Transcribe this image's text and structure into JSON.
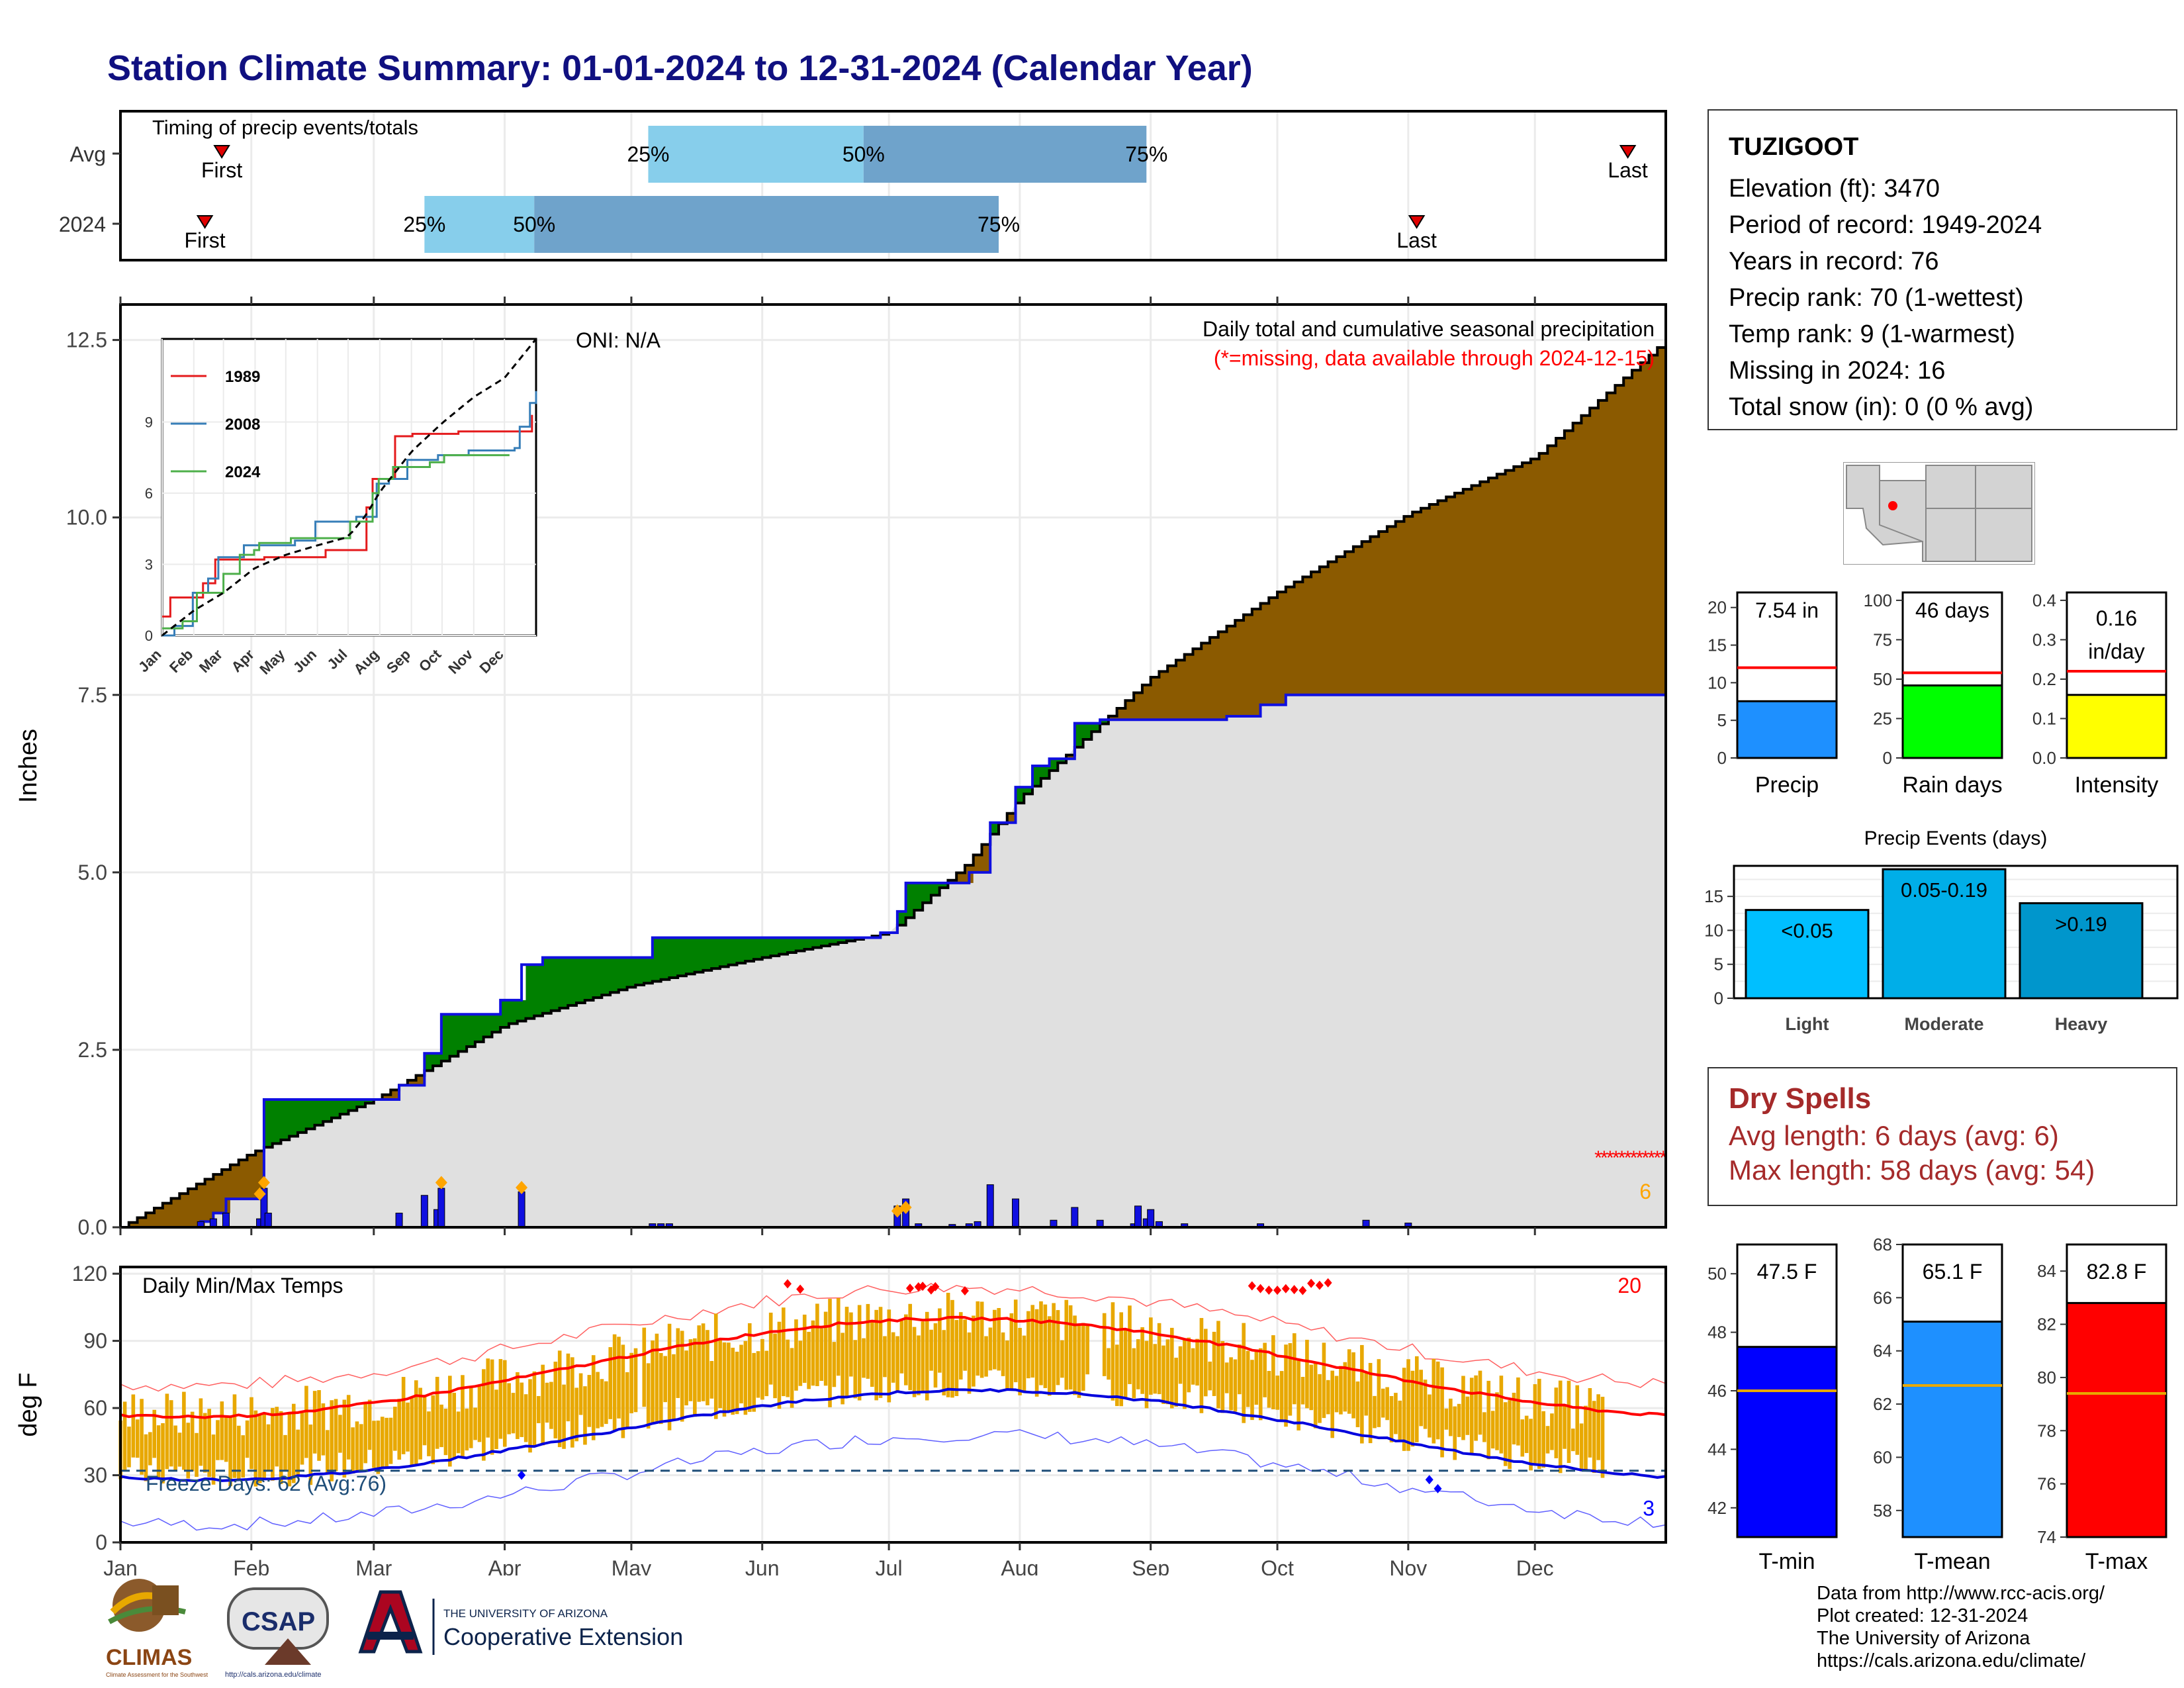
{
  "title": "Station Climate Summary: 01-01-2024 to 12-31-2024 (Calendar Year)",
  "timing_panel": {
    "heading": "Timing of precip events/totals",
    "rows": [
      {
        "label": "Avg",
        "first_label": "First",
        "last_label": "Last",
        "first_date": "2024-01-25",
        "p25_date": "2024-05-05",
        "p50_date": "2024-06-25",
        "p75_date": "2024-08-31",
        "last_date": "2024-12-23"
      },
      {
        "label": "2024",
        "first_label": "First",
        "last_label": "Last",
        "first_date": "2024-01-21",
        "p25_date": "2024-03-13",
        "p50_date": "2024-04-08",
        "p75_date": "2024-07-27",
        "last_date": "2024-11-03"
      }
    ],
    "pct_labels": [
      "25%",
      "50%",
      "75%"
    ],
    "colors": {
      "light": "#87ceeb",
      "dark": "#6fa3cb",
      "marker": "#e00000"
    }
  },
  "precip_panel": {
    "heading": "Daily total and cumulative seasonal precipitation",
    "missing_note": "(*=missing, data available through 2024-12-15)",
    "oni": "ONI: N/A",
    "ylabel": "Inches",
    "yticks": [
      "0.0",
      "2.5",
      "5.0",
      "7.5",
      "10.0",
      "12.5"
    ],
    "missing_count": "6",
    "colors": {
      "avg_fill_above": "#8b5a00",
      "obs_fill_above": "#008000",
      "obs_line": "#1010e0",
      "avg_line": "#000000",
      "daily_bars": "#1010e0",
      "gray": "#e0e0e0",
      "missing": "#ff0000",
      "diamond": "#ffa500"
    }
  },
  "inset": {
    "legend": [
      "1989",
      "2008",
      "2024"
    ],
    "yticks": [
      "0",
      "3",
      "6",
      "9"
    ],
    "xticks": [
      "Jan",
      "Feb",
      "Mar",
      "Apr",
      "May",
      "Jun",
      "Jul",
      "Aug",
      "Sep",
      "Oct",
      "Nov",
      "Dec"
    ],
    "colors": {
      "1989": "#e41a1c",
      "2008": "#377eb8",
      "2024": "#4daf4a"
    }
  },
  "temp_panel": {
    "heading": "Daily Min/Max Temps",
    "ylabel": "deg F",
    "yticks": [
      "0",
      "30",
      "60",
      "90",
      "120"
    ],
    "freeze_label": "Freeze Days: 62 (Avg:76)",
    "hot_count": "20",
    "cold_count": "3",
    "colors": {
      "bars": "#e8a800",
      "max_avg": "#ff0000",
      "min_avg": "#0000dd",
      "freeze": "#1f4e79"
    }
  },
  "x_months": [
    "Jan",
    "Feb",
    "Mar",
    "Apr",
    "May",
    "Jun",
    "Jul",
    "Aug",
    "Sep",
    "Oct",
    "Nov",
    "Dec"
  ],
  "station": {
    "name": "TUZIGOOT",
    "lines": [
      "Elevation (ft): 3470",
      "Period of record: 1949-2024",
      "Years in record: 76",
      "Precip rank: 70 (1-wettest)",
      "Temp rank: 9 (1-warmest)",
      "Missing in 2024: 16",
      "Total snow (in): 0 (0 % avg)"
    ]
  },
  "summary_bars": [
    {
      "label": "Precip",
      "value_text": "7.54 in",
      "value": 7.54,
      "avg": 12,
      "ymax": 22,
      "yticks": [
        "0",
        "5",
        "10",
        "15",
        "20"
      ],
      "tickvals": [
        0,
        5,
        10,
        15,
        20
      ],
      "color": "#1e90ff"
    },
    {
      "label": "Rain days",
      "value_text": "46 days",
      "value": 46,
      "avg": 54,
      "ymax": 105,
      "yticks": [
        "0",
        "25",
        "50",
        "75",
        "100"
      ],
      "tickvals": [
        0,
        25,
        50,
        75,
        100
      ],
      "color": "#00ff00"
    },
    {
      "label": "Intensity",
      "value_text": "0.16 in/day",
      "value": 0.16,
      "avg": 0.22,
      "ymax": 0.42,
      "yticks": [
        "0.0",
        "0.1",
        "0.2",
        "0.3",
        "0.4"
      ],
      "tickvals": [
        0,
        0.1,
        0.2,
        0.3,
        0.4
      ],
      "color": "#ffff00"
    }
  ],
  "precip_events": {
    "title": "Precip Events (days)",
    "yticks": [
      "0",
      "5",
      "10",
      "15"
    ],
    "bars": [
      {
        "label": "Light",
        "range": "<0.05",
        "value": 13,
        "color": "#00bfff"
      },
      {
        "label": "Moderate",
        "range": "0.05-0.19",
        "value": 19,
        "color": "#00aee8"
      },
      {
        "label": "Heavy",
        "range": ">0.19",
        "value": 14,
        "color": "#0096cc"
      }
    ]
  },
  "dry_spells": {
    "title": "Dry Spells",
    "avg_line": "Avg length: 6 days (avg: 6)",
    "max_line": "Max length: 58 days (avg: 54)"
  },
  "temp_bars": [
    {
      "label": "T-min",
      "value_text": "47.5 F",
      "value": 47.5,
      "avg": 46.0,
      "ymin": 41,
      "ymax": 51,
      "yticks": [
        "42",
        "44",
        "46",
        "48",
        "50"
      ],
      "tickvals": [
        42,
        44,
        46,
        48,
        50
      ],
      "color": "#0000ff"
    },
    {
      "label": "T-mean",
      "value_text": "65.1 F",
      "value": 65.1,
      "avg": 62.7,
      "ymin": 57,
      "ymax": 68,
      "yticks": [
        "58",
        "60",
        "62",
        "64",
        "66",
        "68"
      ],
      "tickvals": [
        58,
        60,
        62,
        64,
        66,
        68
      ],
      "color": "#1e90ff"
    },
    {
      "label": "T-max",
      "value_text": "82.8 F",
      "value": 82.8,
      "avg": 79.4,
      "ymin": 74,
      "ymax": 85,
      "yticks": [
        "74",
        "76",
        "78",
        "80",
        "82",
        "84"
      ],
      "tickvals": [
        74,
        76,
        78,
        80,
        82,
        84
      ],
      "color": "#ff0000"
    }
  ],
  "footer": [
    "Data from http://www.rcc-acis.org/",
    "Plot created: 12-31-2024",
    "The University of Arizona",
    "https://cals.arizona.edu/climate/"
  ],
  "logos": {
    "climas": "CLIMAS",
    "climas_sub": "Climate Assessment for the Southwest",
    "csap": "CSAP",
    "csap_url": "http://cals.arizona.edu/climate",
    "ua_small": "THE UNIVERSITY OF ARIZONA",
    "ua_big": "Cooperative Extension"
  }
}
